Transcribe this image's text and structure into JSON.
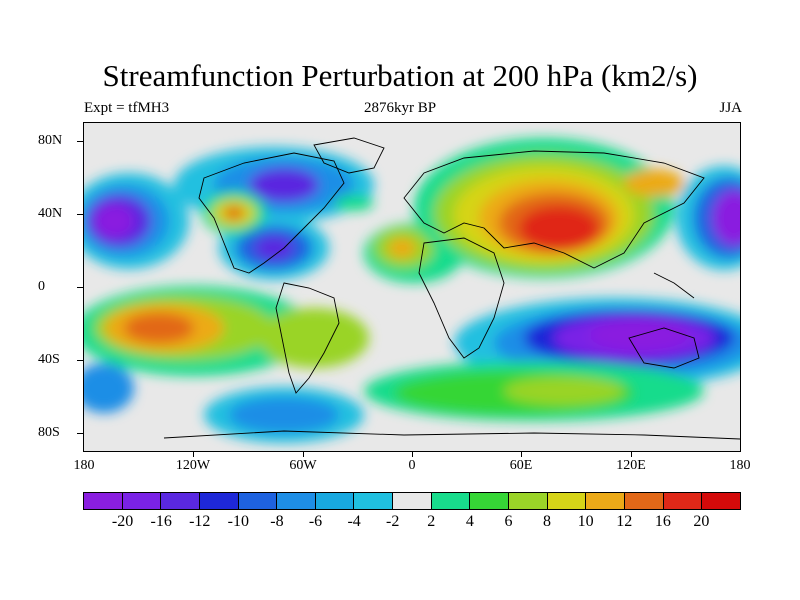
{
  "title": "Streamfunction Perturbation at 200 hPa (km2/s)",
  "subtitle_left": "Expt = tfMH3",
  "subtitle_center": "2876kyr BP",
  "subtitle_right": "JJA",
  "map": {
    "lat_ticks": [
      "80N",
      "40N",
      "0",
      "40S",
      "80S"
    ],
    "lon_ticks": [
      "180",
      "120W",
      "60W",
      "0",
      "60E",
      "120E",
      "180"
    ],
    "lat_range": [
      -90,
      90
    ],
    "lon_range": [
      -180,
      180
    ]
  },
  "colorbar": {
    "labels": [
      "-20",
      "-16",
      "-12",
      "-10",
      "-8",
      "-6",
      "-4",
      "-2",
      "2",
      "4",
      "6",
      "8",
      "10",
      "12",
      "16",
      "20"
    ],
    "colors": [
      "#8a1ee0",
      "#7a22e6",
      "#5a28e0",
      "#1e28d8",
      "#1e62e0",
      "#1e8ee6",
      "#18a8e0",
      "#20c0e0",
      "#e8e8e8",
      "#18dc8c",
      "#36d636",
      "#9ad428",
      "#d6d418",
      "#ecaa18",
      "#e26818",
      "#e02818",
      "#d40a0a"
    ]
  },
  "colors": {
    "background": "#ffffff",
    "land_outline": "#000000",
    "plot_background": "#e8e8e8"
  }
}
